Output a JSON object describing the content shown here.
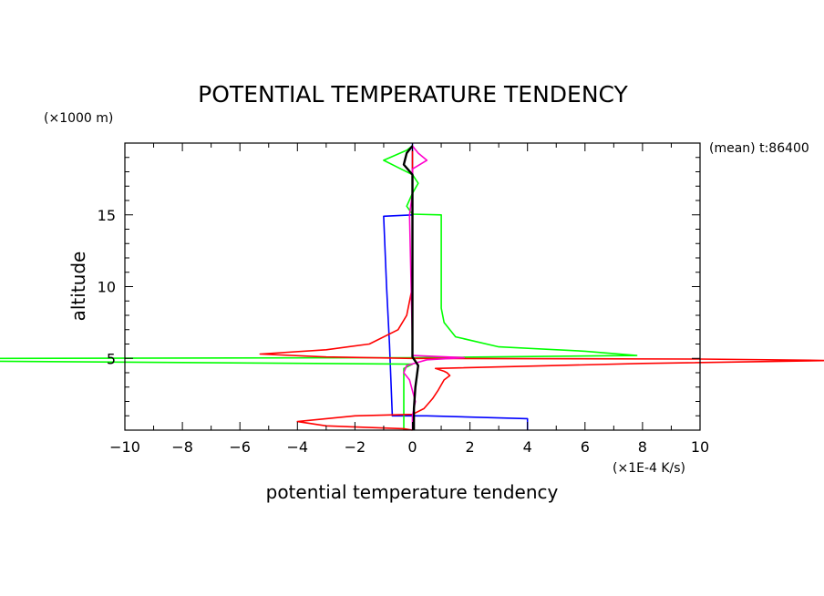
{
  "chart_data": {
    "type": "line",
    "title": "POTENTIAL TEMPERATURE TENDENCY",
    "xlabel": "potential temperature tendency",
    "x_unit": "(×1E-4 K/s)",
    "ylabel": "altitude",
    "y_unit": "(×1000 m)",
    "annotation": "(mean) t:86400",
    "xlim": [
      -10,
      10
    ],
    "ylim": [
      0,
      20
    ],
    "x_ticks": [
      "−10",
      "−8",
      "−6",
      "−4",
      "−2",
      "0",
      "2",
      "4",
      "6",
      "8",
      "10"
    ],
    "y_ticks": [
      "5",
      "10",
      "15"
    ],
    "grid": false,
    "series": [
      {
        "color": "#0000ff",
        "points": [
          [
            0,
            20
          ],
          [
            0,
            19.5
          ],
          [
            0,
            15.0
          ],
          [
            -1,
            14.9
          ],
          [
            -0.9,
            10
          ],
          [
            -0.8,
            6
          ],
          [
            -0.7,
            1.0
          ],
          [
            0.5,
            1.0
          ],
          [
            4.0,
            0.8
          ],
          [
            4.0,
            0
          ]
        ]
      },
      {
        "color": "#00ff00",
        "points": [
          [
            0,
            19.8
          ],
          [
            -0.2,
            19.5
          ],
          [
            -1.0,
            18.8
          ],
          [
            -0.5,
            18.3
          ],
          [
            0,
            17.8
          ],
          [
            0.2,
            17.2
          ],
          [
            0,
            16.5
          ],
          [
            -0.2,
            15.6
          ],
          [
            0,
            15.05
          ],
          [
            1.0,
            15.0
          ],
          [
            1.0,
            8.5
          ],
          [
            1.1,
            7.5
          ],
          [
            1.5,
            6.5
          ],
          [
            3,
            5.8
          ],
          [
            6,
            5.5
          ],
          [
            7.8,
            5.2
          ],
          [
            0,
            5.05
          ],
          [
            -14.6,
            5.0
          ],
          [
            -14.6,
            4.8
          ],
          [
            0,
            4.6
          ],
          [
            -0.3,
            4.3
          ],
          [
            -0.3,
            0
          ]
        ]
      },
      {
        "color": "#ff0000",
        "points": [
          [
            0,
            19.5
          ],
          [
            0,
            10
          ],
          [
            -0.2,
            8
          ],
          [
            -0.5,
            7
          ],
          [
            -1.5,
            6.0
          ],
          [
            -3,
            5.6
          ],
          [
            -5.3,
            5.3
          ],
          [
            -3,
            5.1
          ],
          [
            0,
            5.0
          ],
          [
            10,
            4.95
          ],
          [
            14.6,
            4.85
          ],
          [
            8,
            4.65
          ],
          [
            0.8,
            4.3
          ],
          [
            1.1,
            4.1
          ],
          [
            1.2,
            4.0
          ],
          [
            1.3,
            3.8
          ],
          [
            1.1,
            3.5
          ],
          [
            0.9,
            2.8
          ],
          [
            0.7,
            2.2
          ],
          [
            0.4,
            1.5
          ],
          [
            0,
            1.1
          ],
          [
            -2,
            1.0
          ],
          [
            -4,
            0.6
          ],
          [
            -3,
            0.3
          ],
          [
            -0.3,
            0.1
          ],
          [
            0,
            0
          ]
        ]
      },
      {
        "color": "#ff00cc",
        "points": [
          [
            0,
            19.8
          ],
          [
            0.2,
            19.3
          ],
          [
            0.5,
            18.8
          ],
          [
            0,
            18.2
          ],
          [
            0,
            16.5
          ],
          [
            -0.1,
            15
          ],
          [
            0,
            6
          ],
          [
            0,
            5.2
          ],
          [
            1.8,
            5.05
          ],
          [
            0.5,
            4.9
          ],
          [
            -0.2,
            4.5
          ],
          [
            -0.3,
            4.0
          ],
          [
            -0.1,
            3.5
          ],
          [
            0.1,
            2.0
          ],
          [
            0,
            1.0
          ],
          [
            0,
            0
          ]
        ]
      },
      {
        "color": "#000000",
        "points": [
          [
            0,
            19.8
          ],
          [
            -0.2,
            19.3
          ],
          [
            -0.3,
            18.5
          ],
          [
            0,
            17.8
          ],
          [
            0,
            6
          ],
          [
            0,
            5.1
          ],
          [
            0.1,
            4.8
          ],
          [
            0.2,
            4.5
          ],
          [
            0.1,
            3.0
          ],
          [
            0.05,
            1.5
          ],
          [
            0.05,
            0
          ]
        ]
      }
    ]
  }
}
